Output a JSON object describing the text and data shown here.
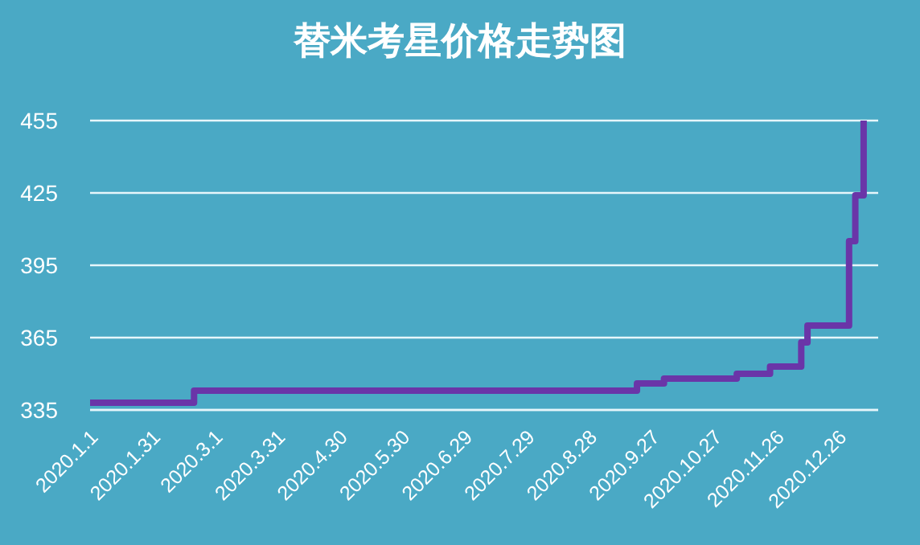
{
  "chart_data": {
    "type": "step",
    "title": "替米考星价格走势图",
    "x": [
      "2020-01-01",
      "2020-02-20",
      "2020-09-20",
      "2020-10-03",
      "2020-11-07",
      "2020-11-23",
      "2020-12-08",
      "2020-12-11",
      "2020-12-31",
      "2021-01-03",
      "2021-01-07"
    ],
    "series": [
      {
        "color": "#6a35a8",
        "values": [
          338,
          343,
          346,
          348,
          350,
          353,
          363,
          370,
          405,
          424,
          455
        ]
      }
    ],
    "xlim": [
      "2020-01-01",
      "2021-01-14"
    ],
    "xticks": [
      {
        "value": "2020-01-01",
        "label": "2020.1.1"
      },
      {
        "value": "2020-01-31",
        "label": "2020.1.31"
      },
      {
        "value": "2020-03-01",
        "label": "2020.3.1"
      },
      {
        "value": "2020-03-31",
        "label": "2020.3.31"
      },
      {
        "value": "2020-04-30",
        "label": "2020.4.30"
      },
      {
        "value": "2020-05-30",
        "label": "2020.5.30"
      },
      {
        "value": "2020-06-29",
        "label": "2020.6.29"
      },
      {
        "value": "2020-07-29",
        "label": "2020.7.29"
      },
      {
        "value": "2020-08-28",
        "label": "2020.8.28"
      },
      {
        "value": "2020-09-27",
        "label": "2020.9.27"
      },
      {
        "value": "2020-10-27",
        "label": "2020.10.27"
      },
      {
        "value": "2020-11-26",
        "label": "2020.11.26"
      },
      {
        "value": "2020-12-26",
        "label": "2020.12.26"
      }
    ],
    "ylim": [
      335,
      455
    ],
    "yticks": [
      335,
      365,
      395,
      425,
      455
    ],
    "grid": "y",
    "marker": "none",
    "legend": false
  }
}
